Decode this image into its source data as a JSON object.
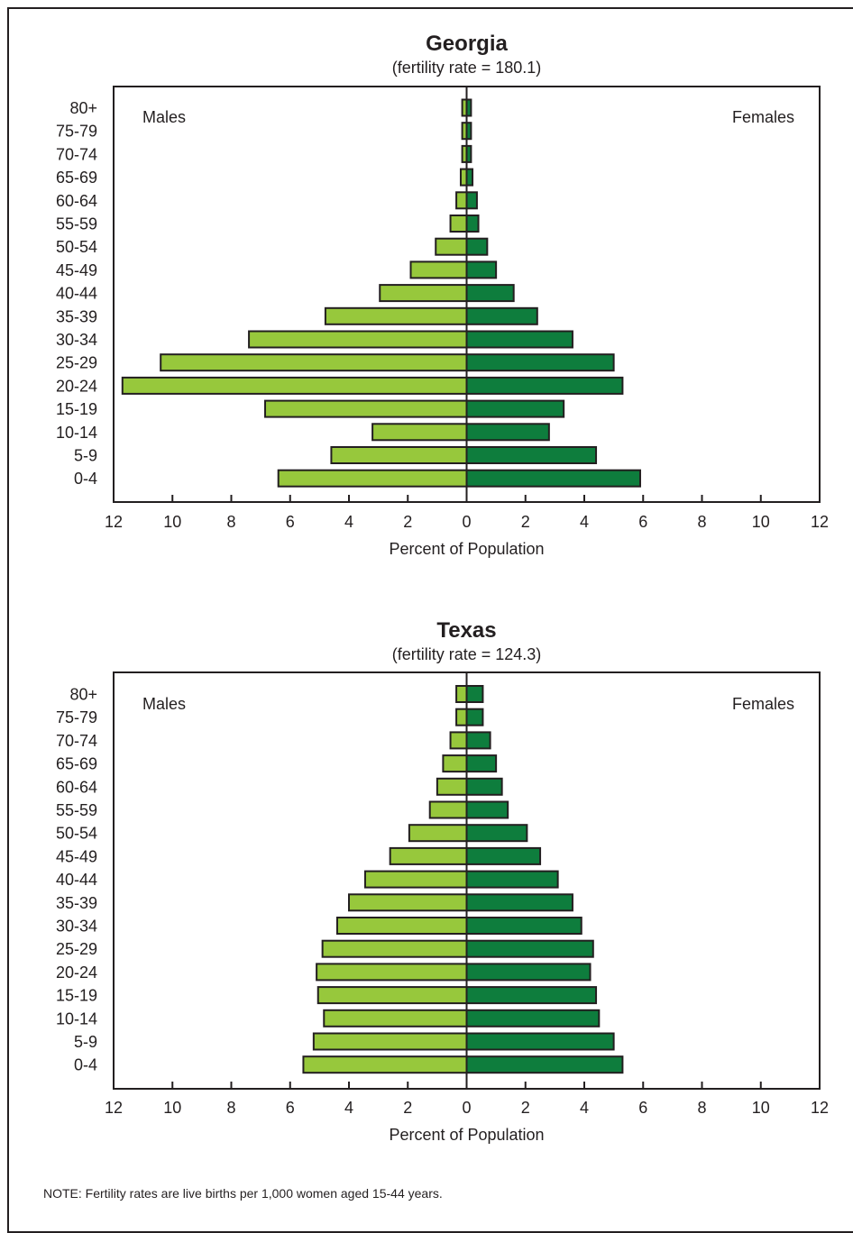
{
  "colors": {
    "male": "#97c83c",
    "female": "#0e7d3d",
    "stroke": "#231f20"
  },
  "note": "NOTE: Fertility rates are live births per 1,000 women aged 15-44 years.",
  "chart_data": [
    {
      "type": "bar",
      "orientation": "horizontal-population-pyramid",
      "title": "Georgia",
      "subtitle": "(fertility rate = 180.1)",
      "xlabel": "Percent of Population",
      "xlim": [
        -12,
        12
      ],
      "xticks": [
        "12",
        "10",
        "8",
        "6",
        "4",
        "2",
        "0",
        "2",
        "4",
        "6",
        "8",
        "10",
        "12"
      ],
      "left_label": "Males",
      "right_label": "Females",
      "categories": [
        "80+",
        "75-79",
        "70-74",
        "65-69",
        "60-64",
        "55-59",
        "50-54",
        "45-49",
        "40-44",
        "35-39",
        "30-34",
        "25-29",
        "20-24",
        "15-19",
        "10-14",
        "5-9",
        "0-4"
      ],
      "series": [
        {
          "name": "Males",
          "values": [
            0.15,
            0.15,
            0.15,
            0.2,
            0.35,
            0.55,
            1.05,
            1.9,
            2.95,
            4.8,
            7.4,
            10.4,
            11.7,
            6.85,
            3.2,
            4.6,
            6.4
          ]
        },
        {
          "name": "Females",
          "values": [
            0.15,
            0.15,
            0.15,
            0.2,
            0.35,
            0.4,
            0.7,
            1.0,
            1.6,
            2.4,
            3.6,
            5.0,
            5.3,
            3.3,
            2.8,
            4.4,
            5.9
          ]
        }
      ]
    },
    {
      "type": "bar",
      "orientation": "horizontal-population-pyramid",
      "title": "Texas",
      "subtitle": "(fertility rate = 124.3)",
      "xlabel": "Percent of Population",
      "xlim": [
        -12,
        12
      ],
      "xticks": [
        "12",
        "10",
        "8",
        "6",
        "4",
        "2",
        "0",
        "2",
        "4",
        "6",
        "8",
        "10",
        "12"
      ],
      "left_label": "Males",
      "right_label": "Females",
      "categories": [
        "80+",
        "75-79",
        "70-74",
        "65-69",
        "60-64",
        "55-59",
        "50-54",
        "45-49",
        "40-44",
        "35-39",
        "30-34",
        "25-29",
        "20-24",
        "15-19",
        "10-14",
        "5-9",
        "0-4"
      ],
      "series": [
        {
          "name": "Males",
          "values": [
            0.35,
            0.35,
            0.55,
            0.8,
            1.0,
            1.25,
            1.95,
            2.6,
            3.45,
            4.0,
            4.4,
            4.9,
            5.1,
            5.05,
            4.85,
            5.2,
            5.55
          ]
        },
        {
          "name": "Females",
          "values": [
            0.55,
            0.55,
            0.8,
            1.0,
            1.2,
            1.4,
            2.05,
            2.5,
            3.1,
            3.6,
            3.9,
            4.3,
            4.2,
            4.4,
            4.5,
            5.0,
            5.3
          ]
        }
      ]
    }
  ]
}
